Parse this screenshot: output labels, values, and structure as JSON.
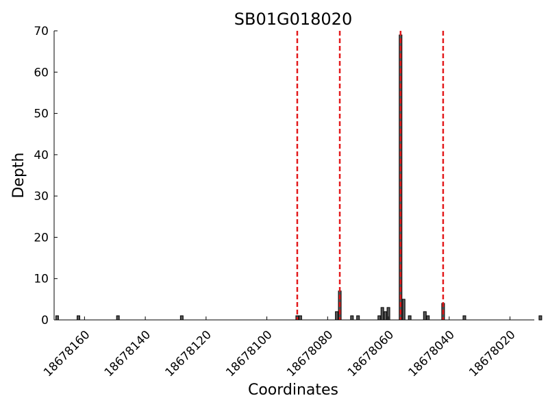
{
  "chart_data": {
    "type": "bar",
    "title": "SB01G018020",
    "xlabel": "Coordinates",
    "ylabel": "Depth",
    "xlim": [
      18678170,
      18678012
    ],
    "ylim": [
      0,
      70
    ],
    "x_reversed": true,
    "xticks": [
      "18678160",
      "18678140",
      "18678120",
      "18678100",
      "18678080",
      "18678060",
      "18678040",
      "18678020"
    ],
    "xtick_values": [
      18678160,
      18678140,
      18678120,
      18678100,
      18678080,
      18678060,
      18678040,
      18678020
    ],
    "yticks": [
      "0",
      "10",
      "20",
      "30",
      "40",
      "50",
      "60",
      "70"
    ],
    "ytick_values": [
      0,
      10,
      20,
      30,
      40,
      50,
      60,
      70
    ],
    "grid": false,
    "bar_color": "#555555",
    "bar_edge_color": "#000000",
    "vline_color": "#e31a1c",
    "bars": [
      {
        "x": 18678169,
        "y": 1
      },
      {
        "x": 18678162,
        "y": 1
      },
      {
        "x": 18678149,
        "y": 1
      },
      {
        "x": 18678128,
        "y": 1
      },
      {
        "x": 18678090,
        "y": 1
      },
      {
        "x": 18678089,
        "y": 1
      },
      {
        "x": 18678077,
        "y": 2
      },
      {
        "x": 18678076,
        "y": 7
      },
      {
        "x": 18678072,
        "y": 1
      },
      {
        "x": 18678070,
        "y": 1
      },
      {
        "x": 18678063,
        "y": 1
      },
      {
        "x": 18678062,
        "y": 3
      },
      {
        "x": 18678061,
        "y": 2
      },
      {
        "x": 18678060,
        "y": 3
      },
      {
        "x": 18678056,
        "y": 69
      },
      {
        "x": 18678055,
        "y": 5
      },
      {
        "x": 18678053,
        "y": 1
      },
      {
        "x": 18678048,
        "y": 2
      },
      {
        "x": 18678047,
        "y": 1
      },
      {
        "x": 18678042,
        "y": 4
      },
      {
        "x": 18678035,
        "y": 1
      },
      {
        "x": 18678010,
        "y": 1
      }
    ],
    "vlines": [
      18678090,
      18678076,
      18678056,
      18678042
    ]
  }
}
